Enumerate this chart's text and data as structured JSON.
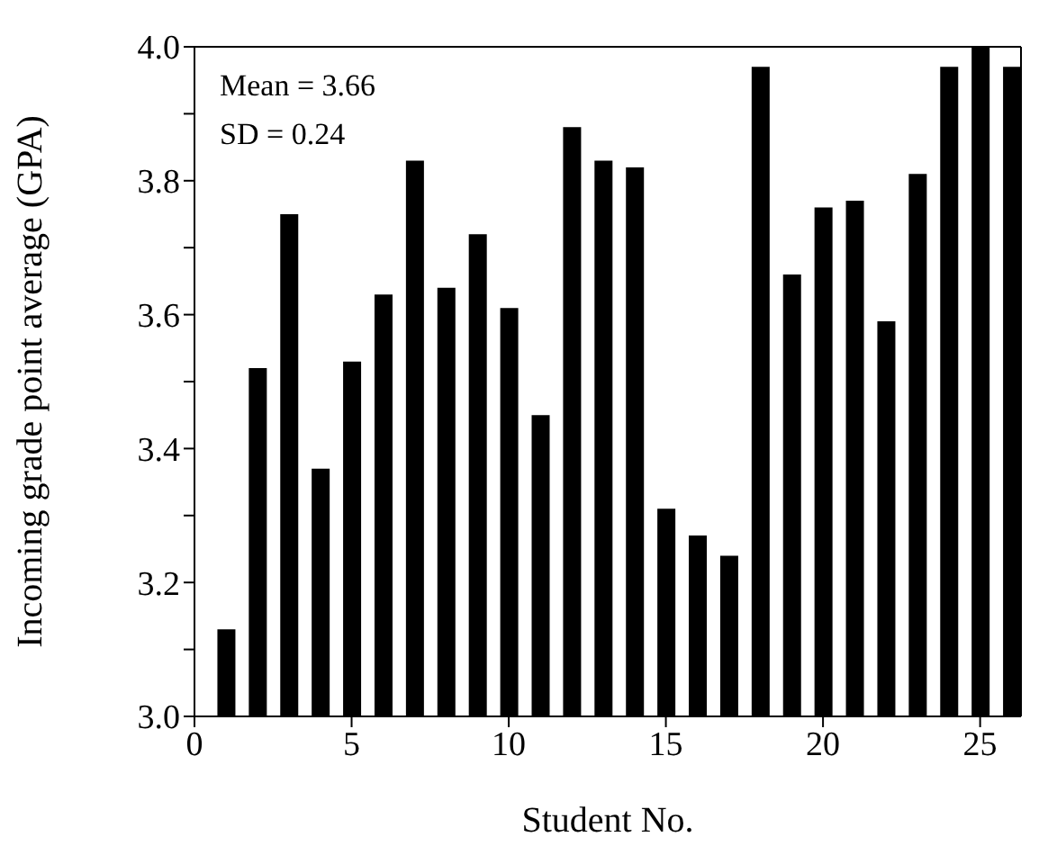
{
  "chart_data": {
    "type": "bar",
    "xlabel": "Student No.",
    "ylabel": "Incoming grade point average (GPA)",
    "x": [
      1,
      2,
      3,
      4,
      5,
      6,
      7,
      8,
      9,
      10,
      11,
      12,
      13,
      14,
      15,
      16,
      17,
      18,
      19,
      20,
      21,
      22,
      23,
      24,
      25,
      26
    ],
    "values": [
      3.13,
      3.52,
      3.75,
      3.37,
      3.53,
      3.63,
      3.83,
      3.64,
      3.72,
      3.61,
      3.45,
      3.88,
      3.83,
      3.82,
      3.31,
      3.27,
      3.24,
      3.97,
      3.66,
      3.76,
      3.77,
      3.59,
      3.81,
      3.97,
      4.0,
      3.97
    ],
    "color": "#000000",
    "xlim": [
      0,
      26.3
    ],
    "xticks": [
      0,
      5,
      10,
      15,
      20,
      25
    ],
    "ylim": [
      3.0,
      4.0
    ],
    "yticks": [
      {
        "value": 3,
        "label": "3.0"
      },
      {
        "value": 3.1,
        "label": null
      },
      3.2,
      {
        "value": 3.3,
        "label": null
      },
      3.4,
      {
        "value": 3.5,
        "label": null
      },
      3.6,
      {
        "value": 3.7,
        "label": null
      },
      3.8,
      {
        "value": 3.9,
        "label": null
      },
      {
        "value": 4,
        "label": "4.0"
      }
    ],
    "annotations": [
      "Mean = 3.66",
      "SD = 0.24"
    ]
  }
}
